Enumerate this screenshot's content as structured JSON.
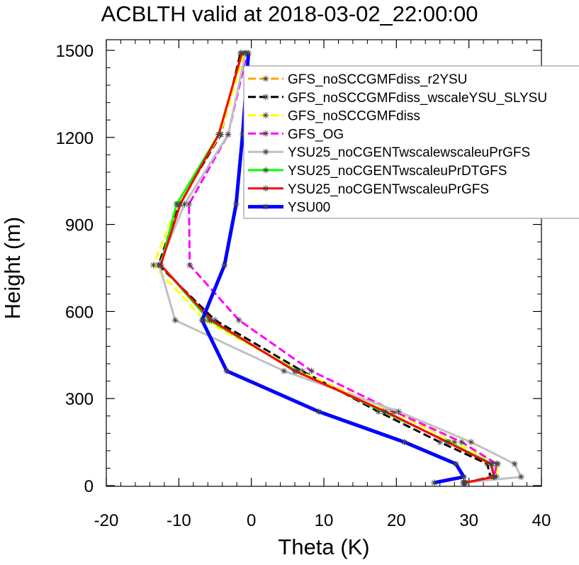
{
  "chart_data": {
    "type": "line",
    "title": "ACBLTH valid at 2018-03-02_22:00:00",
    "xlabel": "Theta (K)",
    "ylabel": "Height (m)",
    "xlim": [
      -20,
      40
    ],
    "ylim": [
      0,
      1500
    ],
    "xticks": [
      -20,
      -10,
      0,
      10,
      20,
      30,
      40
    ],
    "yticks": [
      0,
      300,
      600,
      900,
      1200,
      1500
    ],
    "grid": false,
    "legend_position": "top-right",
    "heights": [
      10,
      30,
      75,
      150,
      255,
      395,
      570,
      760,
      970,
      1210,
      1490
    ],
    "series": [
      {
        "name": "GFS_noSCCGMFdiss_r2YSU",
        "color": "#ffa500",
        "dash": "dash",
        "x": [
          29.5,
          33.5,
          33,
          27,
          18.5,
          6,
          -5.5,
          -12.5,
          -9.8,
          -4.5,
          -1.3
        ]
      },
      {
        "name": "GFS_noSCCGMFdiss_wscaleYSU_SLYSU",
        "color": "#000000",
        "dash": "dash",
        "x": [
          29.5,
          33,
          32.5,
          26,
          17.5,
          7,
          -5,
          -12.8,
          -10,
          -4.2,
          -1.5
        ]
      },
      {
        "name": "GFS_noSCCGMFdiss",
        "color": "#ffff00",
        "dash": "dash",
        "x": [
          29.5,
          33.8,
          34,
          28,
          19.5,
          6.5,
          -6.5,
          -13.5,
          -10.2,
          -4.3,
          -1
        ]
      },
      {
        "name": "GFS_OG",
        "color": "#ff00ff",
        "dash": "dash",
        "x": [
          29.3,
          33.5,
          33.8,
          29,
          19.8,
          8.3,
          -1.7,
          -8.5,
          -8.6,
          -3.2,
          -0.6
        ]
      },
      {
        "name": "YSU25_noCGENTwscalewscaleuPrGFS",
        "color": "#c0c0c0",
        "dash": "solid",
        "x": [
          29.2,
          37.2,
          36.3,
          30.3,
          20.3,
          4.5,
          -10.5,
          -12.7,
          -9.2,
          -3.2,
          -0.8
        ]
      },
      {
        "name": "YSU25_noCGENTwscaleuPrDTGFS",
        "color": "#00ff00",
        "dash": "solid",
        "x": [
          29.4,
          33.4,
          33.2,
          27.2,
          18.2,
          6.2,
          -5.8,
          -12.5,
          -10.3,
          -4.5,
          -1.3
        ]
      },
      {
        "name": "YSU25_noCGENTwscaleuPrGFS",
        "color": "#ff0000",
        "dash": "solid",
        "x": [
          29.5,
          33.5,
          33,
          27,
          18.5,
          6,
          -5.5,
          -12.5,
          -9.8,
          -4.5,
          -1.3
        ]
      },
      {
        "name": "YSU00",
        "color": "#0000ff",
        "dash": "solid",
        "x": [
          25.2,
          29.3,
          28.2,
          21.1,
          9.3,
          -3.4,
          -6.8,
          -3.7,
          -2.1,
          -1.2,
          -0.4
        ]
      }
    ]
  }
}
